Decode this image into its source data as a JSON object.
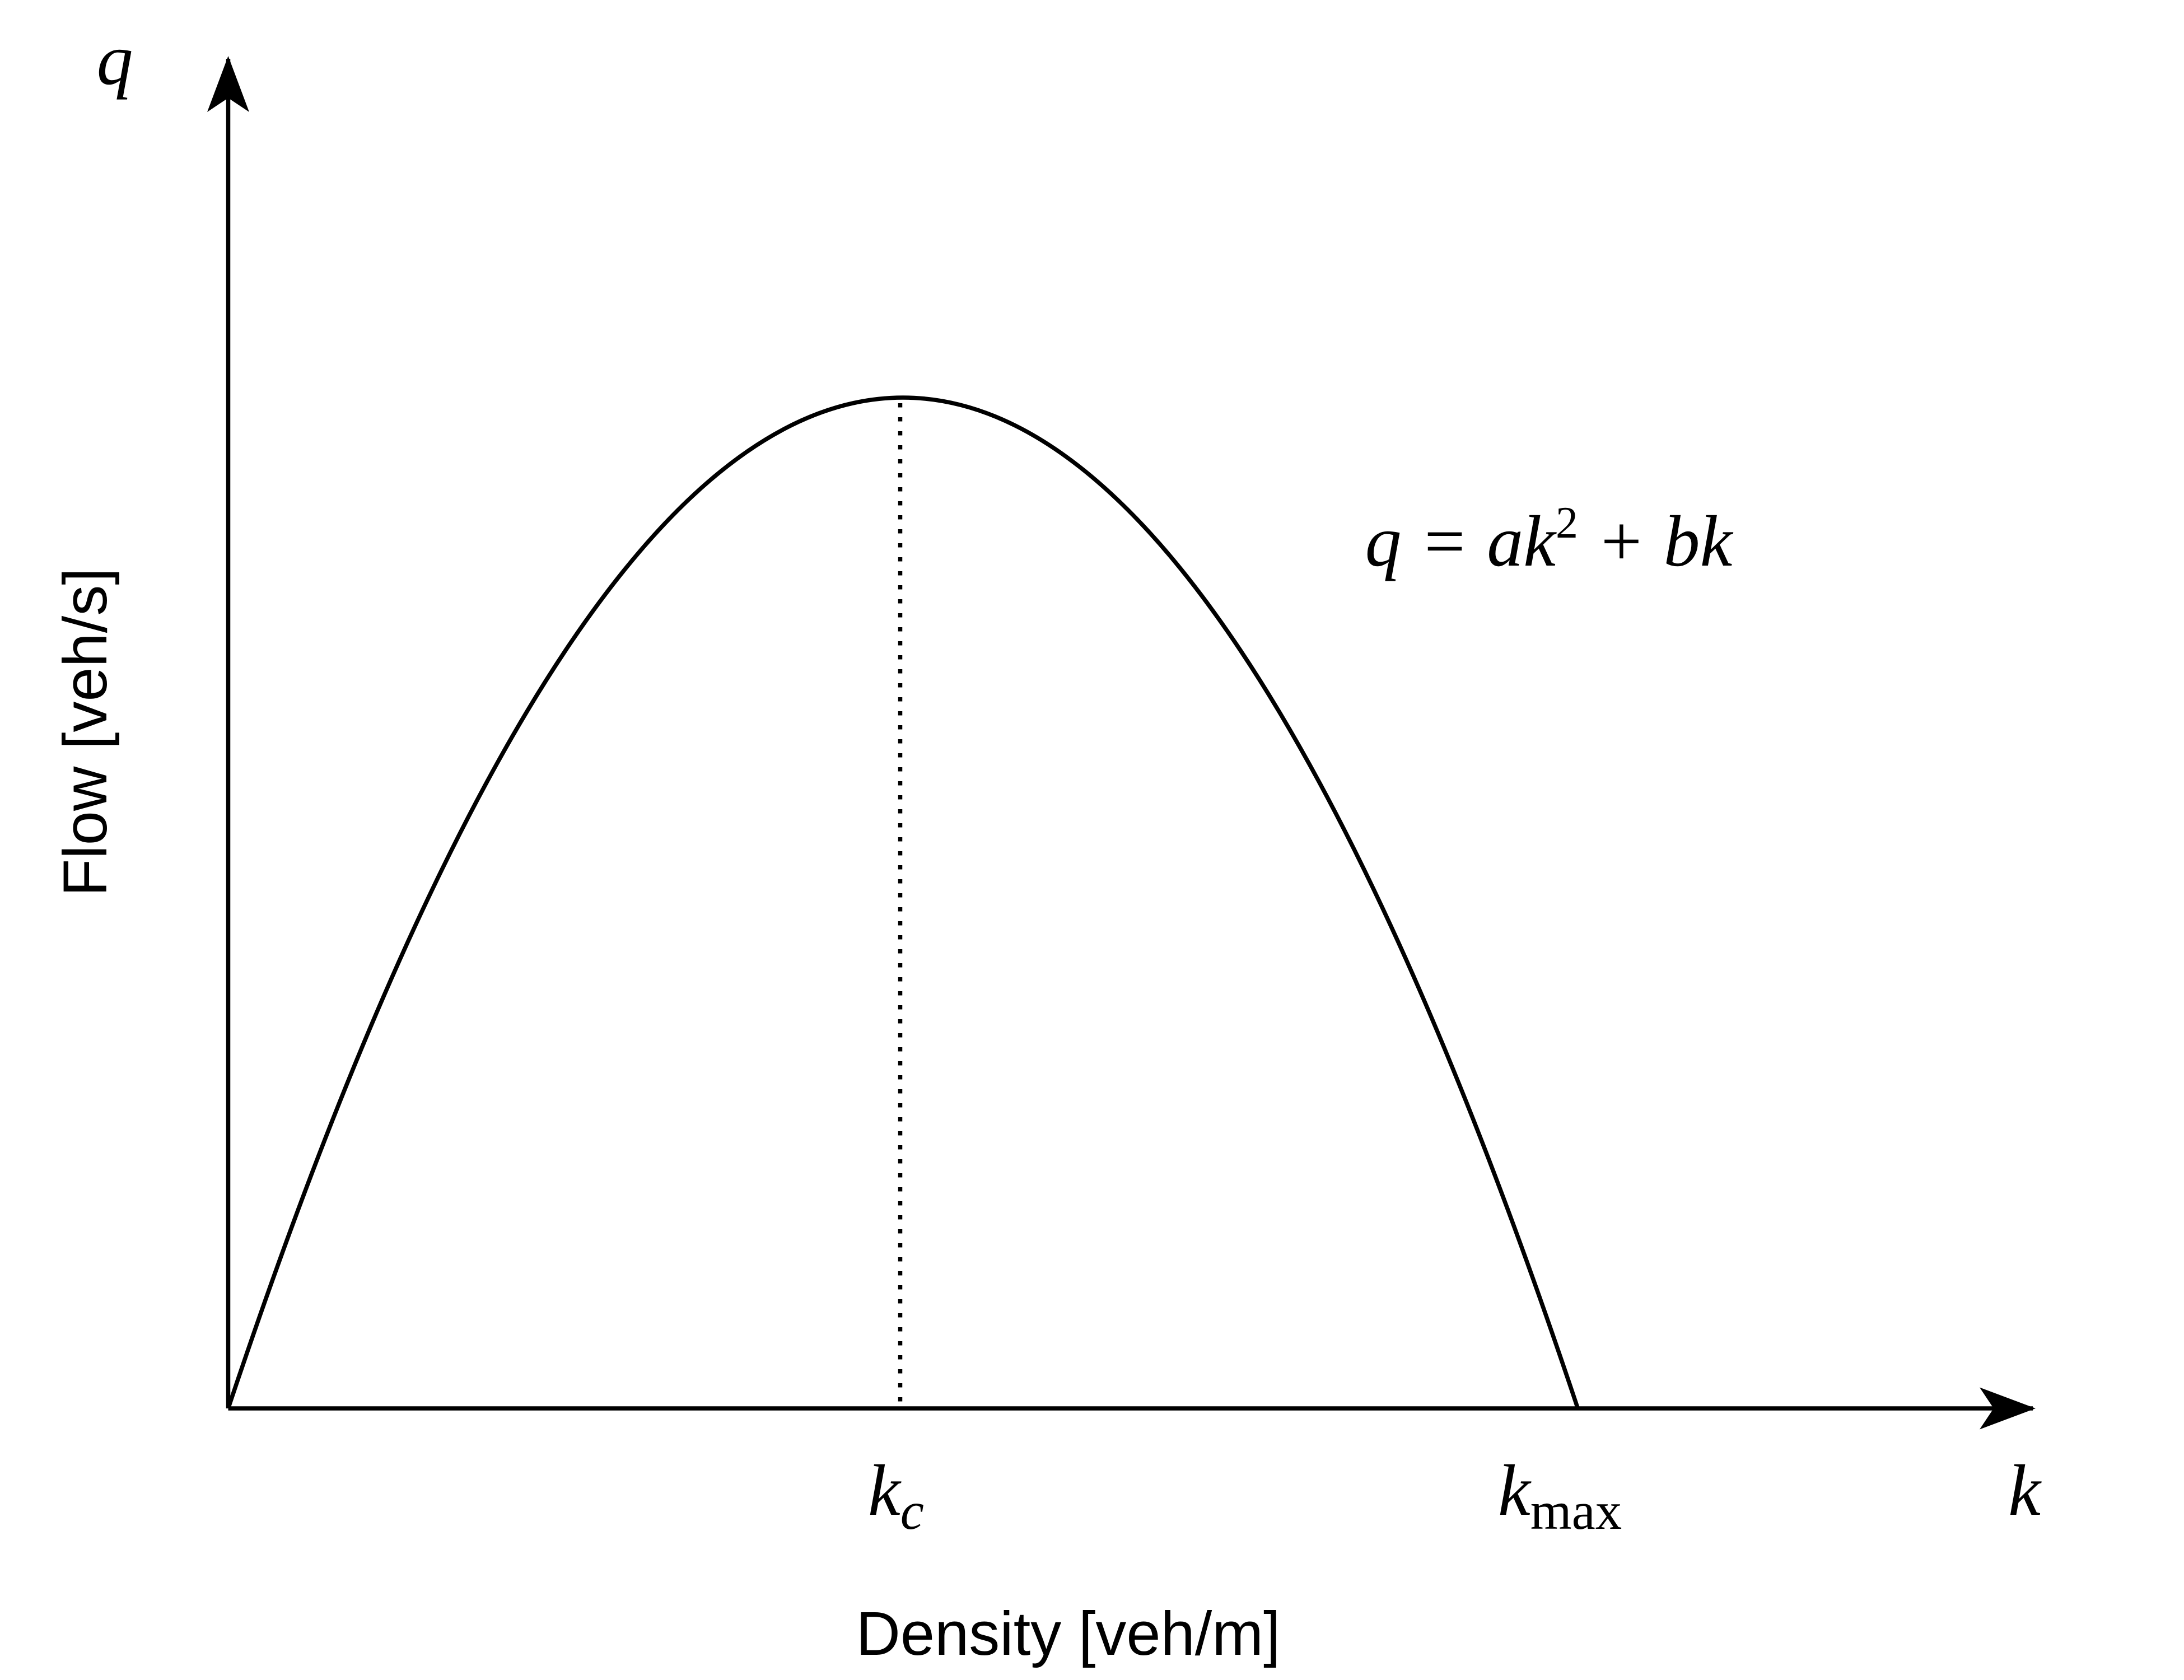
{
  "y_axis": {
    "symbol": "q",
    "label": "Flow [veh/s]"
  },
  "x_axis": {
    "symbol": "k",
    "label": "Density [veh/m]"
  },
  "equation": {
    "left": "q = ak",
    "power": "2",
    "right": " + bk"
  },
  "markers": {
    "critical": {
      "base": "k",
      "sub": "c"
    },
    "maximum": {
      "base": "k",
      "sub": "max"
    }
  }
}
